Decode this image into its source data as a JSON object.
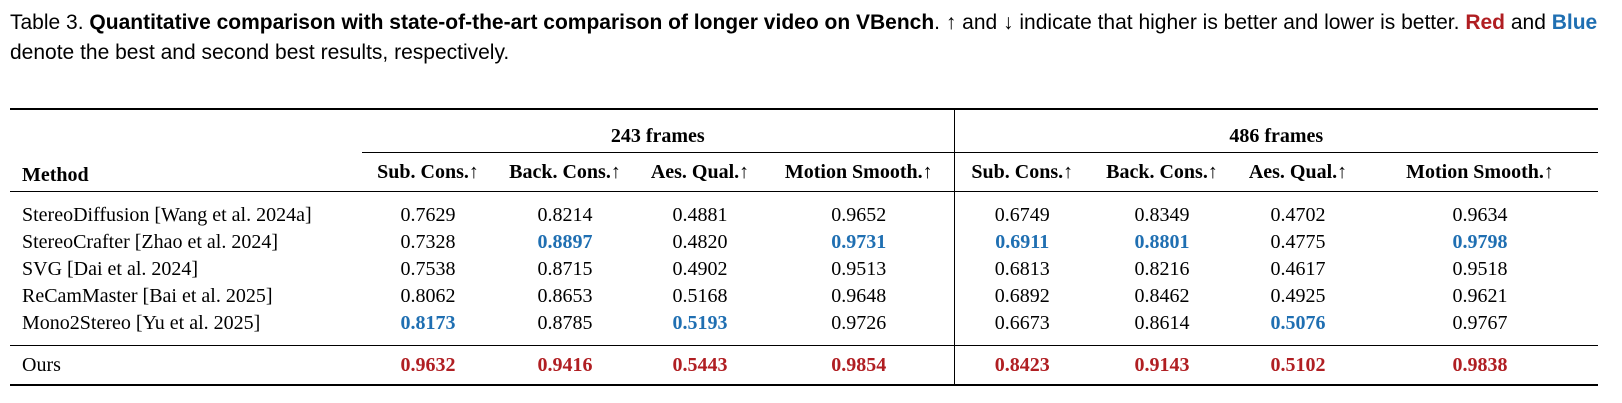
{
  "caption": {
    "label": "Table 3.",
    "title": "Quantitative comparison with state-of-the-art comparison of longer video on VBench",
    "text1": ". ↑ and ↓ indicate that higher is better and lower is better. ",
    "red_word": "Red",
    "and_word": " and ",
    "blue_word": "Blue",
    "text2": " denote the best and second best results, respectively."
  },
  "table": {
    "method_header": "Method",
    "groups": [
      "243 frames",
      "486 frames"
    ],
    "metrics": [
      "Sub. Cons.↑",
      "Back. Cons.↑",
      "Aes. Qual.↑",
      "Motion Smooth.↑",
      "Sub. Cons.↑",
      "Back. Cons.↑",
      "Aes. Qual.↑",
      "Motion Smooth.↑"
    ],
    "rows": [
      {
        "method": "StereoDiffusion [Wang et al. 2024a]",
        "values": [
          "0.7629",
          "0.8214",
          "0.4881",
          "0.9652",
          "0.6749",
          "0.8349",
          "0.4702",
          "0.9634"
        ]
      },
      {
        "method": "StereoCrafter [Zhao et al. 2024]",
        "values": [
          "0.7328",
          "0.8897",
          "0.4820",
          "0.9731",
          "0.6911",
          "0.8801",
          "0.4775",
          "0.9798"
        ]
      },
      {
        "method": "SVG [Dai et al. 2024]",
        "values": [
          "0.7538",
          "0.8715",
          "0.4902",
          "0.9513",
          "0.6813",
          "0.8216",
          "0.4617",
          "0.9518"
        ]
      },
      {
        "method": "ReCamMaster [Bai et al. 2025]",
        "values": [
          "0.8062",
          "0.8653",
          "0.5168",
          "0.9648",
          "0.6892",
          "0.8462",
          "0.4925",
          "0.9621"
        ]
      },
      {
        "method": "Mono2Stereo [Yu et al. 2025]",
        "values": [
          "0.8173",
          "0.8785",
          "0.5193",
          "0.9726",
          "0.6673",
          "0.8614",
          "0.5076",
          "0.9767"
        ]
      },
      {
        "method": "Ours",
        "values": [
          "0.9632",
          "0.9416",
          "0.5443",
          "0.9854",
          "0.8423",
          "0.9143",
          "0.5102",
          "0.9838"
        ]
      }
    ],
    "highlight_colors": {
      "best": "#b01e22",
      "second": "#1f6fb2"
    },
    "highlights": {
      "best": [
        [
          5,
          0
        ],
        [
          5,
          1
        ],
        [
          5,
          2
        ],
        [
          5,
          3
        ],
        [
          5,
          4
        ],
        [
          5,
          5
        ],
        [
          5,
          6
        ],
        [
          5,
          7
        ]
      ],
      "second": [
        [
          4,
          0
        ],
        [
          1,
          1
        ],
        [
          4,
          2
        ],
        [
          1,
          3
        ],
        [
          1,
          4
        ],
        [
          1,
          5
        ],
        [
          4,
          6
        ],
        [
          1,
          7
        ]
      ]
    }
  }
}
